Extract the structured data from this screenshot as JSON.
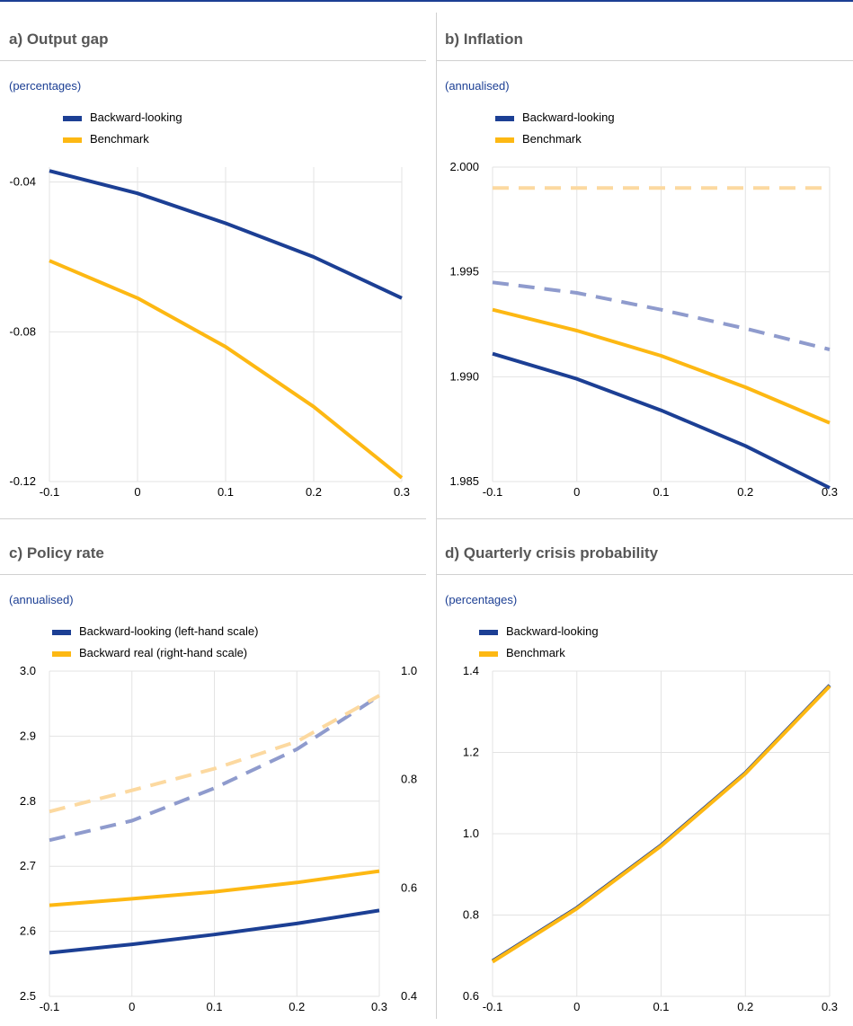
{
  "chart_data": [
    {
      "id": "a",
      "type": "line",
      "title": "a) Output gap",
      "subtitle": "(percentages)",
      "x": [
        -0.1,
        0,
        0.1,
        0.2,
        0.3
      ],
      "xticks": [
        "-0.1",
        "0",
        "0.1",
        "0.2",
        "0.3"
      ],
      "ylim": [
        -0.12,
        -0.036
      ],
      "yticks": [
        "-0.04",
        "-0.08",
        "-0.12"
      ],
      "ytick_values": [
        -0.04,
        -0.08,
        -0.12
      ],
      "grid": true,
      "legend_position": "top-left",
      "series": [
        {
          "name": "Backward-looking",
          "color": "#1c3f94",
          "style": "solid",
          "values": [
            -0.037,
            -0.043,
            -0.051,
            -0.06,
            -0.071
          ]
        },
        {
          "name": "Benchmark",
          "color": "#fdb813",
          "style": "solid",
          "values": [
            -0.061,
            -0.071,
            -0.084,
            -0.1,
            -0.119
          ]
        }
      ]
    },
    {
      "id": "b",
      "type": "line",
      "title": "b) Inflation",
      "subtitle": "(annualised)",
      "x": [
        -0.1,
        0,
        0.1,
        0.2,
        0.3
      ],
      "xticks": [
        "-0.1",
        "0",
        "0.1",
        "0.2",
        "0.3"
      ],
      "ylim": [
        1.985,
        2.0
      ],
      "yticks": [
        "2.000",
        "1.995",
        "1.990",
        "1.985"
      ],
      "ytick_values": [
        2.0,
        1.995,
        1.99,
        1.985
      ],
      "grid": true,
      "legend_position": "top-left",
      "series": [
        {
          "name": "Backward-looking",
          "color": "#1c3f94",
          "style": "solid",
          "values": [
            1.9911,
            1.9899,
            1.9884,
            1.9867,
            1.9847
          ]
        },
        {
          "name": "Benchmark",
          "color": "#fdb813",
          "style": "solid",
          "values": [
            1.9932,
            1.9922,
            1.991,
            1.9895,
            1.9878
          ]
        },
        {
          "color": "#8f9bcd",
          "style": "dashed",
          "values": [
            1.9945,
            1.994,
            1.9932,
            1.9923,
            1.9913
          ]
        },
        {
          "color": "#fcd9a0",
          "style": "dashed",
          "values": [
            1.999,
            1.999,
            1.999,
            1.999,
            1.999
          ]
        }
      ]
    },
    {
      "id": "c",
      "type": "line",
      "title": "c) Policy rate",
      "subtitle": "(annualised)",
      "x": [
        -0.1,
        0,
        0.1,
        0.2,
        0.3
      ],
      "xticks": [
        "-0.1",
        "0",
        "0.1",
        "0.2",
        "0.3"
      ],
      "ylim": [
        2.5,
        3.0
      ],
      "yticks": [
        "3.0",
        "2.9",
        "2.8",
        "2.7",
        "2.6",
        "2.5"
      ],
      "ytick_values": [
        3.0,
        2.9,
        2.8,
        2.7,
        2.6,
        2.5
      ],
      "y2lim": [
        0.4,
        1.0
      ],
      "y2ticks": [
        "1.0",
        "0.8",
        "0.6",
        "0.4"
      ],
      "y2tick_values": [
        1.0,
        0.8,
        0.6,
        0.4
      ],
      "grid": true,
      "legend_position": "top-left",
      "series": [
        {
          "name": "Backward-looking (left-hand scale)",
          "color": "#1c3f94",
          "style": "solid",
          "axis": "left",
          "values": [
            2.567,
            2.58,
            2.595,
            2.612,
            2.632
          ]
        },
        {
          "name": "Backward real (right-hand scale)",
          "color": "#fdb813",
          "style": "solid",
          "axis": "right",
          "values": [
            0.568,
            0.58,
            0.593,
            0.61,
            0.631
          ]
        },
        {
          "color": "#8f9bcd",
          "style": "dashed",
          "axis": "left",
          "values": [
            2.74,
            2.77,
            2.82,
            2.88,
            2.962
          ]
        },
        {
          "color": "#fcd9a0",
          "style": "dashed",
          "axis": "right",
          "values": [
            0.741,
            0.78,
            0.82,
            0.87,
            0.955
          ]
        }
      ]
    },
    {
      "id": "d",
      "type": "line",
      "title": "d) Quarterly crisis probability",
      "subtitle": "(percentages)",
      "x": [
        -0.1,
        0,
        0.1,
        0.2,
        0.3
      ],
      "xticks": [
        "-0.1",
        "0",
        "0.1",
        "0.2",
        "0.3"
      ],
      "ylim": [
        0.6,
        1.4
      ],
      "yticks": [
        "1.4",
        "1.2",
        "1.0",
        "0.8",
        "0.6"
      ],
      "ytick_values": [
        1.4,
        1.2,
        1.0,
        0.8,
        0.6
      ],
      "grid": true,
      "legend_position": "top-left",
      "series": [
        {
          "name": "Backward-looking",
          "color": "#1c3f94",
          "style": "solid",
          "values": [
            0.687,
            0.818,
            0.972,
            1.15,
            1.365
          ]
        },
        {
          "name": "Benchmark",
          "color": "#fdb813",
          "style": "solid",
          "values": [
            0.685,
            0.816,
            0.97,
            1.148,
            1.363
          ]
        }
      ]
    }
  ]
}
